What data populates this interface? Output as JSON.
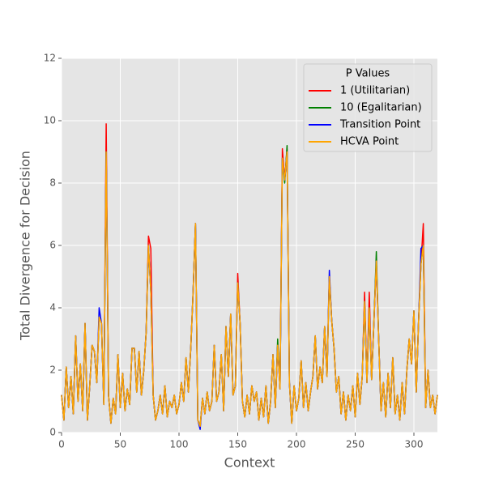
{
  "chart_data": {
    "type": "line",
    "x_label": "Context",
    "y_label": "Total Divergence for Decision",
    "legend_title": "P Values",
    "legend": "upper right",
    "grid": true,
    "xlim": [
      0,
      320
    ],
    "xticks": [
      0,
      50,
      100,
      150,
      200,
      250,
      300
    ],
    "ylim": [
      0,
      12
    ],
    "yticks": [
      0,
      2,
      4,
      6,
      8,
      10,
      12
    ],
    "x": [
      0,
      2,
      4,
      6,
      8,
      10,
      12,
      14,
      16,
      18,
      20,
      22,
      24,
      26,
      28,
      30,
      32,
      34,
      36,
      38,
      40,
      42,
      44,
      46,
      48,
      50,
      52,
      54,
      56,
      58,
      60,
      62,
      64,
      66,
      68,
      70,
      72,
      74,
      76,
      78,
      80,
      82,
      84,
      86,
      88,
      90,
      92,
      94,
      96,
      98,
      100,
      102,
      104,
      106,
      108,
      110,
      112,
      114,
      116,
      118,
      120,
      122,
      124,
      126,
      128,
      130,
      132,
      134,
      136,
      138,
      140,
      142,
      144,
      146,
      148,
      150,
      152,
      154,
      156,
      158,
      160,
      162,
      164,
      166,
      168,
      170,
      172,
      174,
      176,
      178,
      180,
      182,
      184,
      186,
      188,
      190,
      192,
      194,
      196,
      198,
      200,
      202,
      204,
      206,
      208,
      210,
      212,
      214,
      216,
      218,
      220,
      222,
      224,
      226,
      228,
      230,
      232,
      234,
      236,
      238,
      240,
      242,
      244,
      246,
      248,
      250,
      252,
      254,
      256,
      258,
      260,
      262,
      264,
      266,
      268,
      270,
      272,
      274,
      276,
      278,
      280,
      282,
      284,
      286,
      288,
      290,
      292,
      294,
      296,
      298,
      300,
      302,
      304,
      306,
      308,
      310,
      312,
      314,
      316,
      318,
      320
    ],
    "series": [
      {
        "name": "1 (Utilitarian)",
        "color": "#ff0000",
        "values": [
          1.2,
          0.4,
          2.1,
          0.8,
          1.8,
          0.6,
          3.1,
          1.0,
          2.2,
          0.7,
          3.5,
          0.4,
          1.5,
          2.8,
          2.6,
          1.6,
          3.7,
          3.5,
          0.9,
          9.9,
          1.2,
          0.3,
          1.1,
          0.6,
          2.5,
          0.8,
          1.9,
          0.7,
          1.4,
          0.9,
          2.7,
          2.7,
          1.3,
          2.6,
          1.2,
          2.0,
          3.2,
          6.3,
          5.9,
          1.2,
          0.4,
          0.7,
          1.2,
          0.6,
          1.5,
          0.5,
          1.0,
          0.8,
          1.2,
          0.6,
          0.9,
          1.6,
          1.0,
          2.4,
          1.3,
          2.7,
          4.5,
          6.7,
          0.4,
          0.2,
          1.1,
          0.6,
          1.3,
          0.7,
          1.0,
          2.8,
          1.0,
          1.3,
          2.5,
          0.7,
          3.4,
          1.8,
          3.8,
          1.2,
          1.5,
          5.1,
          3.5,
          1.0,
          0.5,
          1.2,
          0.6,
          1.5,
          1.0,
          1.3,
          0.4,
          1.1,
          0.5,
          1.5,
          0.3,
          1.0,
          2.5,
          0.8,
          2.8,
          1.4,
          9.1,
          8.1,
          9.1,
          1.6,
          0.3,
          1.5,
          0.7,
          1.1,
          2.3,
          0.8,
          1.6,
          0.7,
          1.3,
          1.8,
          3.1,
          1.4,
          2.1,
          1.6,
          3.4,
          1.8,
          5.0,
          3.6,
          2.7,
          1.3,
          1.8,
          0.6,
          1.3,
          0.4,
          1.2,
          0.7,
          1.5,
          0.5,
          1.9,
          0.9,
          1.8,
          4.5,
          1.6,
          4.5,
          1.7,
          3.6,
          5.5,
          3.0,
          0.7,
          1.6,
          0.5,
          1.9,
          0.8,
          2.4,
          0.6,
          1.2,
          0.4,
          1.6,
          0.6,
          2.0,
          3.0,
          2.2,
          3.9,
          1.3,
          3.6,
          5.4,
          6.7,
          0.8,
          2.0,
          0.8,
          1.2,
          0.6,
          1.2
        ]
      },
      {
        "name": "10 (Egalitarian)",
        "color": "#008000",
        "values": [
          1.2,
          0.4,
          2.1,
          0.8,
          1.8,
          0.6,
          3.1,
          1.0,
          2.2,
          0.7,
          3.5,
          0.4,
          1.5,
          2.8,
          2.6,
          1.6,
          3.7,
          3.5,
          0.9,
          9.0,
          1.2,
          0.3,
          1.1,
          0.6,
          2.5,
          0.8,
          1.9,
          0.7,
          1.4,
          0.9,
          2.7,
          2.7,
          1.3,
          2.6,
          1.2,
          2.0,
          3.2,
          6.0,
          4.5,
          1.2,
          0.4,
          0.7,
          1.2,
          0.6,
          1.5,
          0.5,
          1.0,
          0.8,
          1.2,
          0.6,
          0.9,
          1.6,
          1.0,
          2.4,
          1.3,
          2.7,
          4.5,
          6.7,
          0.4,
          0.2,
          1.1,
          0.6,
          1.3,
          0.7,
          1.0,
          2.8,
          1.0,
          1.3,
          2.5,
          0.7,
          3.4,
          1.8,
          3.8,
          1.2,
          1.5,
          4.8,
          3.5,
          1.0,
          0.5,
          1.2,
          0.6,
          1.5,
          1.0,
          1.3,
          0.4,
          1.1,
          0.5,
          1.5,
          0.3,
          1.0,
          2.5,
          0.8,
          3.0,
          1.4,
          8.8,
          8.0,
          9.2,
          1.6,
          0.3,
          1.5,
          0.7,
          1.1,
          2.3,
          0.8,
          1.6,
          0.7,
          1.3,
          1.8,
          3.1,
          1.4,
          2.1,
          1.6,
          3.4,
          1.8,
          5.0,
          3.6,
          2.7,
          1.3,
          1.8,
          0.6,
          1.3,
          0.4,
          1.2,
          0.7,
          1.5,
          0.5,
          1.9,
          0.9,
          1.8,
          4.2,
          1.6,
          4.0,
          1.7,
          3.6,
          5.8,
          3.0,
          0.7,
          1.6,
          0.5,
          1.9,
          0.8,
          2.4,
          0.6,
          1.2,
          0.4,
          1.6,
          0.6,
          2.0,
          3.0,
          2.2,
          3.9,
          1.3,
          3.6,
          5.4,
          6.0,
          0.8,
          2.0,
          0.8,
          1.2,
          0.6,
          1.2
        ]
      },
      {
        "name": "Transition Point",
        "color": "#0000ff",
        "values": [
          1.2,
          0.4,
          2.1,
          0.8,
          1.8,
          0.6,
          3.1,
          1.0,
          2.2,
          0.7,
          3.5,
          0.4,
          1.5,
          2.8,
          2.6,
          1.6,
          4.0,
          3.5,
          0.9,
          9.0,
          1.2,
          0.3,
          1.1,
          0.6,
          2.5,
          0.8,
          1.9,
          0.7,
          1.4,
          0.9,
          2.7,
          2.7,
          1.3,
          2.6,
          1.2,
          2.0,
          3.2,
          6.0,
          4.5,
          1.2,
          0.4,
          0.7,
          1.2,
          0.6,
          1.5,
          0.5,
          1.0,
          0.8,
          1.2,
          0.6,
          0.9,
          1.6,
          1.0,
          2.4,
          1.3,
          2.7,
          4.5,
          6.7,
          0.4,
          0.1,
          1.1,
          0.6,
          1.3,
          0.7,
          1.0,
          2.8,
          1.0,
          1.3,
          2.5,
          0.7,
          3.4,
          1.8,
          3.8,
          1.2,
          1.5,
          4.8,
          3.5,
          1.0,
          0.5,
          1.2,
          0.6,
          1.5,
          1.0,
          1.3,
          0.4,
          1.1,
          0.5,
          1.5,
          0.3,
          1.0,
          2.5,
          0.8,
          2.8,
          1.4,
          8.8,
          8.1,
          9.0,
          1.6,
          0.3,
          1.5,
          0.7,
          1.1,
          2.3,
          0.8,
          1.6,
          0.7,
          1.3,
          1.8,
          3.1,
          1.4,
          2.1,
          1.6,
          3.4,
          1.8,
          5.2,
          3.6,
          2.7,
          1.3,
          1.8,
          0.6,
          1.3,
          0.4,
          1.2,
          0.7,
          1.5,
          0.5,
          1.9,
          0.9,
          1.8,
          4.2,
          1.6,
          4.0,
          1.7,
          3.6,
          5.5,
          3.0,
          0.7,
          1.6,
          0.5,
          1.9,
          0.8,
          2.4,
          0.6,
          1.2,
          0.4,
          1.6,
          0.6,
          2.0,
          3.0,
          2.2,
          3.9,
          1.3,
          3.6,
          5.9,
          6.0,
          0.8,
          2.0,
          0.8,
          1.2,
          0.6,
          1.2
        ]
      },
      {
        "name": "HCVA Point",
        "color": "#ffa500",
        "values": [
          1.2,
          0.4,
          2.1,
          0.8,
          1.8,
          0.6,
          3.1,
          1.0,
          2.2,
          0.7,
          3.5,
          0.4,
          1.5,
          2.8,
          2.6,
          1.6,
          3.7,
          3.5,
          0.9,
          9.0,
          1.2,
          0.3,
          1.1,
          0.6,
          2.5,
          0.8,
          1.9,
          0.7,
          1.4,
          0.9,
          2.7,
          2.7,
          1.3,
          2.6,
          1.2,
          2.0,
          3.2,
          6.0,
          4.5,
          1.2,
          0.4,
          0.7,
          1.2,
          0.6,
          1.5,
          0.5,
          1.0,
          0.8,
          1.2,
          0.6,
          0.9,
          1.6,
          1.0,
          2.4,
          1.3,
          2.7,
          4.5,
          6.7,
          0.4,
          0.2,
          1.1,
          0.6,
          1.3,
          0.7,
          1.0,
          2.8,
          1.0,
          1.3,
          2.5,
          0.7,
          3.4,
          1.8,
          3.8,
          1.2,
          1.5,
          4.8,
          3.5,
          1.0,
          0.5,
          1.2,
          0.6,
          1.5,
          1.0,
          1.3,
          0.4,
          1.1,
          0.5,
          1.5,
          0.3,
          1.0,
          2.5,
          0.8,
          2.8,
          1.4,
          8.8,
          8.1,
          9.0,
          1.6,
          0.3,
          1.5,
          0.7,
          1.1,
          2.3,
          0.8,
          1.6,
          0.7,
          1.3,
          1.8,
          3.1,
          1.4,
          2.1,
          1.6,
          3.4,
          1.8,
          5.0,
          3.6,
          2.7,
          1.3,
          1.8,
          0.6,
          1.3,
          0.4,
          1.2,
          0.7,
          1.5,
          0.5,
          1.9,
          0.9,
          1.8,
          4.2,
          1.6,
          4.0,
          1.7,
          3.6,
          5.5,
          3.0,
          0.7,
          1.6,
          0.5,
          1.9,
          0.8,
          2.4,
          0.6,
          1.2,
          0.4,
          1.6,
          0.6,
          2.0,
          3.0,
          2.2,
          3.9,
          1.3,
          3.6,
          5.4,
          6.0,
          0.8,
          2.0,
          0.8,
          1.2,
          0.6,
          1.2
        ]
      }
    ]
  }
}
